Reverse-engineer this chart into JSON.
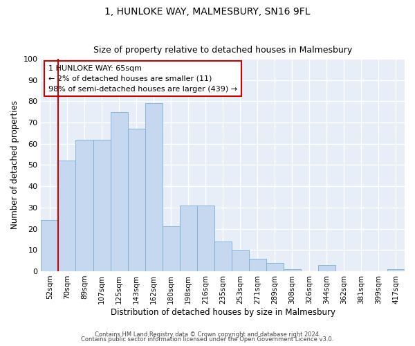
{
  "title1": "1, HUNLOKE WAY, MALMESBURY, SN16 9FL",
  "title2": "Size of property relative to detached houses in Malmesbury",
  "xlabel": "Distribution of detached houses by size in Malmesbury",
  "ylabel": "Number of detached properties",
  "categories": [
    "52sqm",
    "70sqm",
    "89sqm",
    "107sqm",
    "125sqm",
    "143sqm",
    "162sqm",
    "180sqm",
    "198sqm",
    "216sqm",
    "235sqm",
    "253sqm",
    "271sqm",
    "289sqm",
    "308sqm",
    "326sqm",
    "344sqm",
    "362sqm",
    "381sqm",
    "399sqm",
    "417sqm"
  ],
  "values": [
    24,
    52,
    62,
    62,
    75,
    67,
    79,
    21,
    31,
    31,
    14,
    10,
    6,
    4,
    1,
    0,
    3,
    0,
    0,
    0,
    1
  ],
  "bar_color": "#c5d8f0",
  "bar_edge_color": "#7bafd4",
  "background_color": "#ffffff",
  "plot_bg_color": "#e8eef8",
  "grid_color": "#ffffff",
  "vline_color": "#cc0000",
  "annotation_text": "1 HUNLOKE WAY: 65sqm\n← 2% of detached houses are smaller (11)\n98% of semi-detached houses are larger (439) →",
  "annotation_box_color": "#ffffff",
  "annotation_box_edge": "#cc0000",
  "ylim": [
    0,
    100
  ],
  "footnote1": "Contains HM Land Registry data © Crown copyright and database right 2024.",
  "footnote2": "Contains public sector information licensed under the Open Government Licence v3.0."
}
